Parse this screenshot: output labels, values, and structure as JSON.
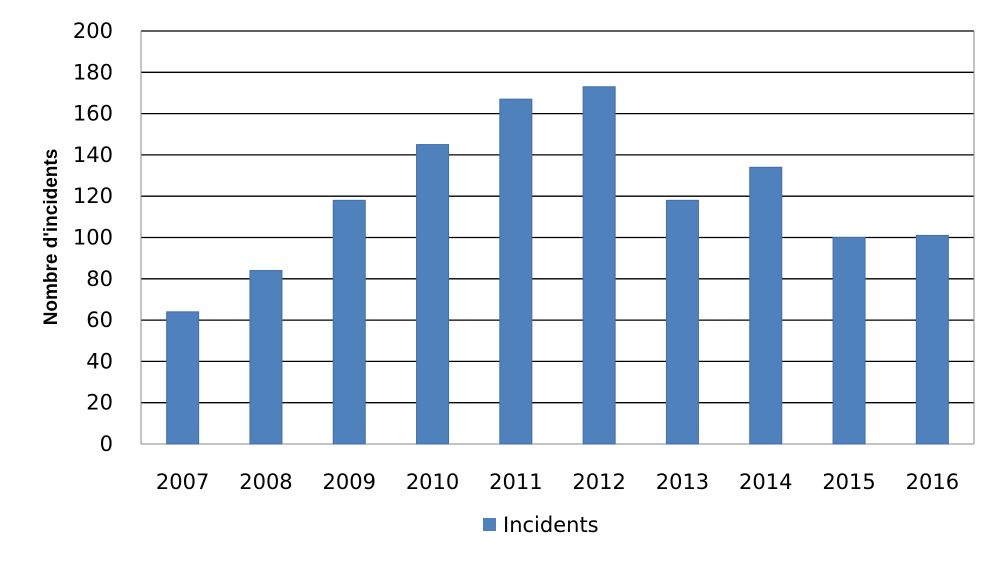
{
  "chart_data": {
    "type": "bar",
    "title": "",
    "xlabel": "",
    "ylabel": "Nombre d'incidents",
    "categories": [
      "2007",
      "2008",
      "2009",
      "2010",
      "2011",
      "2012",
      "2013",
      "2014",
      "2015",
      "2016"
    ],
    "series": [
      {
        "name": "Incidents",
        "values": [
          64,
          84,
          118,
          145,
          167,
          173,
          118,
          134,
          100,
          101
        ],
        "color": "#4F81BD"
      }
    ],
    "ylim": [
      0,
      200
    ],
    "yticks": [
      0,
      20,
      40,
      60,
      80,
      100,
      120,
      140,
      160,
      180,
      200
    ],
    "grid": true,
    "legend": "bottom"
  }
}
